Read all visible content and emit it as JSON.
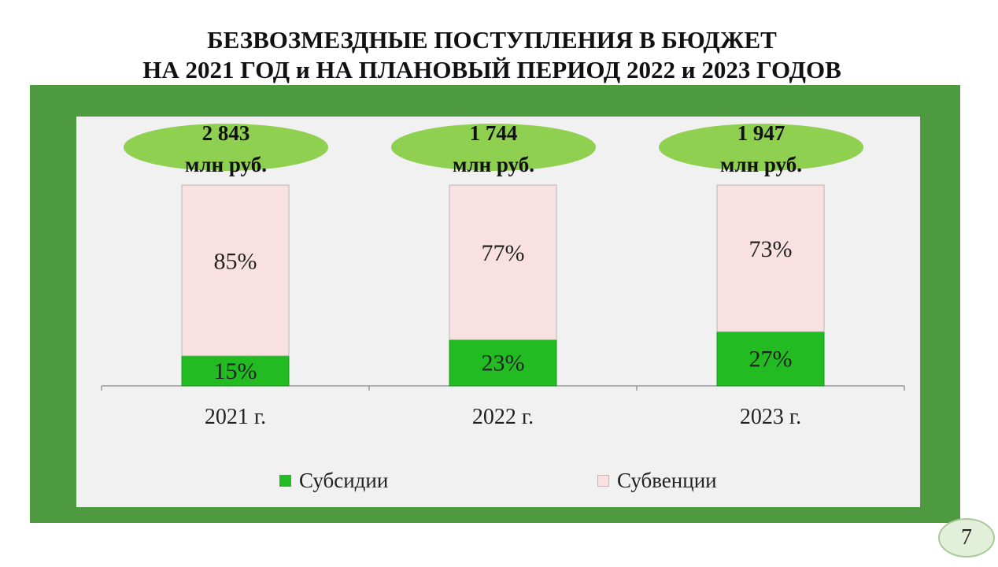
{
  "title_line1": "БЕЗВОЗМЕЗДНЫЕ ПОСТУПЛЕНИЯ В БЮДЖЕТ",
  "title_line2": "НА 2021 ГОД и НА ПЛАНОВЫЙ ПЕРИОД 2022 и 2023 ГОДОВ",
  "page_number": "7",
  "colors": {
    "frame": "#4d9a40",
    "plot_bg": "#f1f1f1",
    "subsidies": "#22bb22",
    "subventions": "#f9e1e1",
    "total_ellipse": "#8fd050"
  },
  "chart_data": {
    "type": "bar",
    "stacked": true,
    "percent": true,
    "categories": [
      "2021 г.",
      "2022 г.",
      "2023 г."
    ],
    "series": [
      {
        "name": "Субсидии",
        "values": [
          15,
          23,
          27
        ],
        "labels": [
          "15%",
          "23%",
          "27%"
        ],
        "color": "#22bb22"
      },
      {
        "name": "Субвенции",
        "values": [
          85,
          77,
          73
        ],
        "labels": [
          "85%",
          "77%",
          "73%"
        ],
        "color": "#f9e1e1"
      }
    ],
    "totals": [
      {
        "value": "2 843",
        "unit": "млн руб."
      },
      {
        "value": "1 744",
        "unit": "млн руб."
      },
      {
        "value": "1 947",
        "unit": "млн руб."
      }
    ],
    "ylim": [
      0,
      100
    ],
    "grid": false,
    "legend_position": "bottom"
  }
}
